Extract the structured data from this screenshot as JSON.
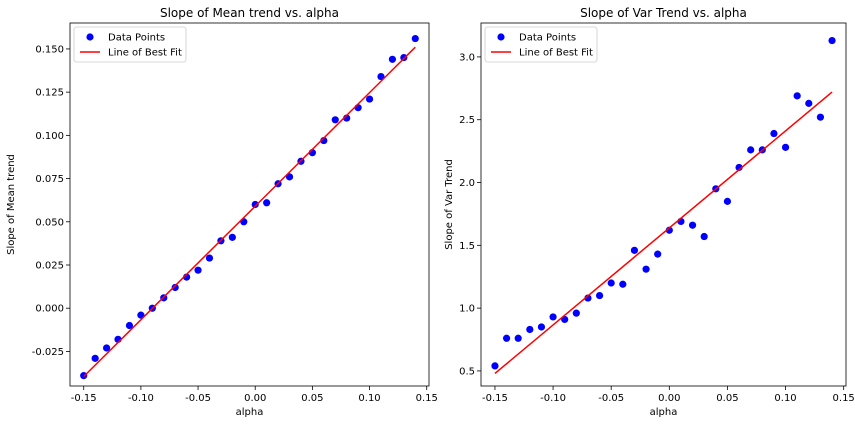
{
  "chart_data": [
    {
      "type": "scatter",
      "title": "Slope of Mean trend vs. alpha",
      "xlabel": "alpha",
      "ylabel": "Slope of Mean trend",
      "xlim": [
        -0.162,
        0.152
      ],
      "ylim": [
        -0.045,
        0.165
      ],
      "xticks": [
        -0.15,
        -0.1,
        -0.05,
        0.0,
        0.05,
        0.1,
        0.15
      ],
      "xtick_labels": [
        "-0.15",
        "-0.10",
        "-0.05",
        "0.00",
        "0.05",
        "0.10",
        "0.15"
      ],
      "yticks": [
        -0.025,
        0.0,
        0.025,
        0.05,
        0.075,
        0.1,
        0.125,
        0.15
      ],
      "ytick_labels": [
        "-0.025",
        "0.000",
        "0.025",
        "0.050",
        "0.075",
        "0.100",
        "0.125",
        "0.150"
      ],
      "legend": "top-left",
      "grid": false,
      "series": [
        {
          "name": "Data Points",
          "kind": "scatter",
          "color": "#0000ff",
          "x": [
            -0.15,
            -0.14,
            -0.13,
            -0.12,
            -0.11,
            -0.1,
            -0.09,
            -0.08,
            -0.07,
            -0.06,
            -0.05,
            -0.04,
            -0.03,
            -0.02,
            -0.01,
            0.0,
            0.01,
            0.02,
            0.03,
            0.04,
            0.05,
            0.06,
            0.07,
            0.08,
            0.09,
            0.1,
            0.11,
            0.12,
            0.13,
            0.14
          ],
          "y": [
            -0.039,
            -0.029,
            -0.023,
            -0.018,
            -0.01,
            -0.004,
            0.0,
            0.006,
            0.012,
            0.018,
            0.022,
            0.029,
            0.039,
            0.041,
            0.05,
            0.06,
            0.061,
            0.072,
            0.076,
            0.085,
            0.09,
            0.097,
            0.109,
            0.11,
            0.116,
            0.121,
            0.134,
            0.144,
            0.145,
            0.156
          ]
        },
        {
          "name": "Line of Best Fit",
          "kind": "line",
          "color": "#ff0000",
          "x": [
            -0.15,
            0.14
          ],
          "y": [
            -0.0395,
            0.151
          ]
        }
      ]
    },
    {
      "type": "scatter",
      "title": "Slope of Var Trend vs. alpha",
      "xlabel": "alpha",
      "ylabel": "Slope of Var Trend",
      "xlim": [
        -0.162,
        0.152
      ],
      "ylim": [
        0.38,
        3.27
      ],
      "xticks": [
        -0.15,
        -0.1,
        -0.05,
        0.0,
        0.05,
        0.1,
        0.15
      ],
      "xtick_labels": [
        "-0.15",
        "-0.10",
        "-0.05",
        "0.00",
        "0.05",
        "0.10",
        "0.15"
      ],
      "yticks": [
        0.5,
        1.0,
        1.5,
        2.0,
        2.5,
        3.0
      ],
      "ytick_labels": [
        "0.5",
        "1.0",
        "1.5",
        "2.0",
        "2.5",
        "3.0"
      ],
      "legend": "top-left",
      "grid": false,
      "series": [
        {
          "name": "Data Points",
          "kind": "scatter",
          "color": "#0000ff",
          "x": [
            -0.15,
            -0.14,
            -0.13,
            -0.12,
            -0.11,
            -0.1,
            -0.09,
            -0.08,
            -0.07,
            -0.06,
            -0.05,
            -0.04,
            -0.03,
            -0.02,
            -0.01,
            0.0,
            0.01,
            0.02,
            0.03,
            0.04,
            0.05,
            0.06,
            0.07,
            0.08,
            0.09,
            0.1,
            0.11,
            0.12,
            0.13,
            0.14
          ],
          "y": [
            0.54,
            0.76,
            0.76,
            0.83,
            0.85,
            0.93,
            0.91,
            0.96,
            1.08,
            1.1,
            1.2,
            1.19,
            1.46,
            1.31,
            1.43,
            1.62,
            1.69,
            1.66,
            1.57,
            1.95,
            1.85,
            2.12,
            2.26,
            2.26,
            2.39,
            2.28,
            2.69,
            2.63,
            2.52,
            3.13
          ]
        },
        {
          "name": "Line of Best Fit",
          "kind": "line",
          "color": "#ff0000",
          "x": [
            -0.15,
            0.14
          ],
          "y": [
            0.48,
            2.72
          ]
        }
      ]
    }
  ]
}
